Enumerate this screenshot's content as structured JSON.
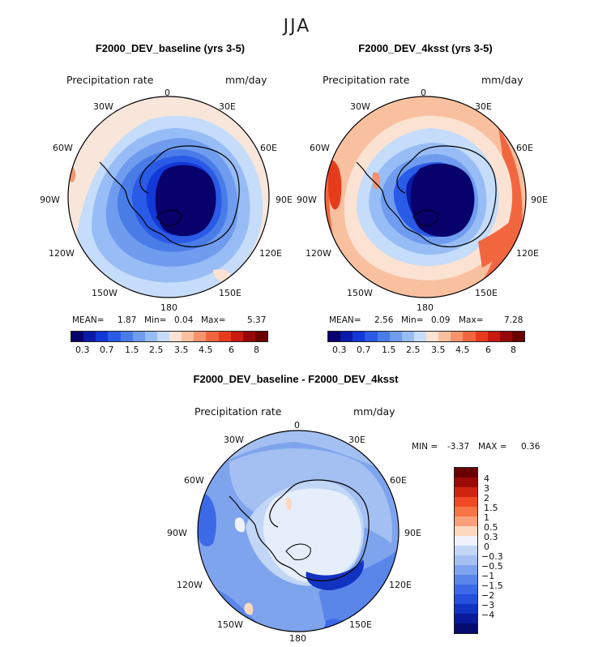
{
  "figure": {
    "season": "JJA",
    "variable": "Precipitation rate",
    "units": "mm/day"
  },
  "panels": {
    "baseline": {
      "title": "F2000_DEV_baseline (yrs 3-5)",
      "mean_label": "MEAN=",
      "mean": "1.87",
      "min_label": "Min=",
      "min": "0.04",
      "max_label": "Max=",
      "max": "5.37"
    },
    "ksst": {
      "title": "F2000_DEV_4ksst (yrs 3-5)",
      "mean_label": "MEAN=",
      "mean": "2.56",
      "min_label": "Min=",
      "min": "0.09",
      "max_label": "Max=",
      "max": "7.28"
    },
    "diff": {
      "title": "F2000_DEV_baseline - F2000_DEV_4ksst",
      "min_label": "MIN =",
      "min": "-3.37",
      "max_label": "MAX =",
      "max": "0.36"
    }
  },
  "lon_labels": [
    "0",
    "30E",
    "60E",
    "90E",
    "120E",
    "150E",
    "180",
    "150W",
    "120W",
    "90W",
    "60W",
    "30W"
  ],
  "abs_colorbar": {
    "colors": [
      "#08006b",
      "#0a1aa6",
      "#1238d6",
      "#2a5be6",
      "#4a7ce8",
      "#6f9cef",
      "#98bcf5",
      "#c5dcfa",
      "#fbe2d2",
      "#f9c0a0",
      "#f7936c",
      "#f2663f",
      "#e73c1c",
      "#c81a10",
      "#980808",
      "#6b0000"
    ],
    "tick_labels": [
      "0.3",
      "0.7",
      "1.5",
      "2.5",
      "3.5",
      "4.5",
      "6",
      "8"
    ]
  },
  "diff_colorbar": {
    "colors": [
      "#6b0000",
      "#9c0a06",
      "#d02610",
      "#f04a24",
      "#f77446",
      "#f9a07a",
      "#fcd8c0",
      "#eef3fa",
      "#c2d6f6",
      "#a4c0f2",
      "#7fa4ee",
      "#5a86ea",
      "#3c6ae6",
      "#2450de",
      "#1232c2",
      "#0a1a9a",
      "#050a6e"
    ],
    "tick_labels": [
      "4",
      "3",
      "2",
      "1.5",
      "1",
      "0.5",
      "0.3",
      "0",
      "−0.3",
      "−0.5",
      "−1",
      "−1.5",
      "−2",
      "−3",
      "−4"
    ]
  }
}
